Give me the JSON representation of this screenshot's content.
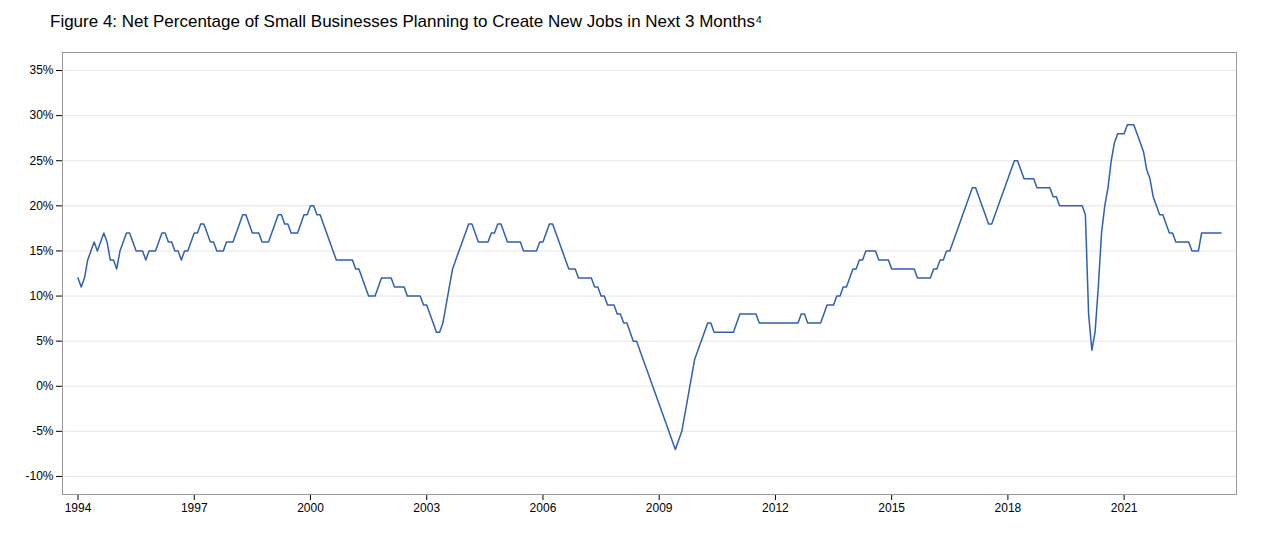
{
  "chart_data": {
    "type": "line",
    "title": "Figure 4: Net Percentage of Small Businesses Planning to Create New Jobs in Next 3 Months⁴",
    "color": "#3060b0",
    "grid": true,
    "xlim": [
      1993.6,
      2023.9
    ],
    "xticks": [
      1994,
      1997,
      2000,
      2003,
      2006,
      2009,
      2012,
      2015,
      2018,
      2021
    ],
    "ylim": [
      -12,
      37
    ],
    "yticks": [
      {
        "value": -10,
        "label": "-10%"
      },
      {
        "value": -5,
        "label": "-5%"
      },
      {
        "value": 0,
        "label": "0%"
      },
      {
        "value": 5,
        "label": "5%"
      },
      {
        "value": 10,
        "label": "10%"
      },
      {
        "value": 15,
        "label": "15%"
      },
      {
        "value": 20,
        "label": "20%"
      },
      {
        "value": 25,
        "label": "25%"
      },
      {
        "value": 30,
        "label": "30%"
      },
      {
        "value": 35,
        "label": "35%"
      }
    ],
    "x": [
      1994.0,
      1994.083,
      1994.167,
      1994.25,
      1994.333,
      1994.417,
      1994.5,
      1994.583,
      1994.667,
      1994.75,
      1994.833,
      1994.917,
      1995.0,
      1995.083,
      1995.167,
      1995.25,
      1995.333,
      1995.417,
      1995.5,
      1995.583,
      1995.667,
      1995.75,
      1995.833,
      1995.917,
      1996.0,
      1996.083,
      1996.167,
      1996.25,
      1996.333,
      1996.417,
      1996.5,
      1996.583,
      1996.667,
      1996.75,
      1996.833,
      1996.917,
      1997.0,
      1997.083,
      1997.167,
      1997.25,
      1997.333,
      1997.417,
      1997.5,
      1997.583,
      1997.667,
      1997.75,
      1997.833,
      1997.917,
      1998.0,
      1998.083,
      1998.167,
      1998.25,
      1998.333,
      1998.417,
      1998.5,
      1998.583,
      1998.667,
      1998.75,
      1998.833,
      1998.917,
      1999.0,
      1999.083,
      1999.167,
      1999.25,
      1999.333,
      1999.417,
      1999.5,
      1999.583,
      1999.667,
      1999.75,
      1999.833,
      1999.917,
      2000.0,
      2000.083,
      2000.167,
      2000.25,
      2000.333,
      2000.417,
      2000.5,
      2000.583,
      2000.667,
      2000.75,
      2000.833,
      2000.917,
      2001.0,
      2001.083,
      2001.167,
      2001.25,
      2001.333,
      2001.417,
      2001.5,
      2001.583,
      2001.667,
      2001.75,
      2001.833,
      2001.917,
      2002.0,
      2002.083,
      2002.167,
      2002.25,
      2002.333,
      2002.417,
      2002.5,
      2002.583,
      2002.667,
      2002.75,
      2002.833,
      2002.917,
      2003.0,
      2003.083,
      2003.167,
      2003.25,
      2003.333,
      2003.417,
      2003.5,
      2003.583,
      2003.667,
      2003.75,
      2003.833,
      2003.917,
      2004.0,
      2004.083,
      2004.167,
      2004.25,
      2004.333,
      2004.417,
      2004.5,
      2004.583,
      2004.667,
      2004.75,
      2004.833,
      2004.917,
      2005.0,
      2005.083,
      2005.167,
      2005.25,
      2005.333,
      2005.417,
      2005.5,
      2005.583,
      2005.667,
      2005.75,
      2005.833,
      2005.917,
      2006.0,
      2006.083,
      2006.167,
      2006.25,
      2006.333,
      2006.417,
      2006.5,
      2006.583,
      2006.667,
      2006.75,
      2006.833,
      2006.917,
      2007.0,
      2007.083,
      2007.167,
      2007.25,
      2007.333,
      2007.417,
      2007.5,
      2007.583,
      2007.667,
      2007.75,
      2007.833,
      2007.917,
      2008.0,
      2008.083,
      2008.167,
      2008.25,
      2008.333,
      2008.417,
      2008.5,
      2008.583,
      2008.667,
      2008.75,
      2008.833,
      2008.917,
      2009.0,
      2009.083,
      2009.167,
      2009.25,
      2009.333,
      2009.417,
      2009.5,
      2009.583,
      2009.667,
      2009.75,
      2009.833,
      2009.917,
      2010.0,
      2010.083,
      2010.167,
      2010.25,
      2010.333,
      2010.417,
      2010.5,
      2010.583,
      2010.667,
      2010.75,
      2010.833,
      2010.917,
      2011.0,
      2011.083,
      2011.167,
      2011.25,
      2011.333,
      2011.417,
      2011.5,
      2011.583,
      2011.667,
      2011.75,
      2011.833,
      2011.917,
      2012.0,
      2012.083,
      2012.167,
      2012.25,
      2012.333,
      2012.417,
      2012.5,
      2012.583,
      2012.667,
      2012.75,
      2012.833,
      2012.917,
      2013.0,
      2013.083,
      2013.167,
      2013.25,
      2013.333,
      2013.417,
      2013.5,
      2013.583,
      2013.667,
      2013.75,
      2013.833,
      2013.917,
      2014.0,
      2014.083,
      2014.167,
      2014.25,
      2014.333,
      2014.417,
      2014.5,
      2014.583,
      2014.667,
      2014.75,
      2014.833,
      2014.917,
      2015.0,
      2015.083,
      2015.167,
      2015.25,
      2015.333,
      2015.417,
      2015.5,
      2015.583,
      2015.667,
      2015.75,
      2015.833,
      2015.917,
      2016.0,
      2016.083,
      2016.167,
      2016.25,
      2016.333,
      2016.417,
      2016.5,
      2016.583,
      2016.667,
      2016.75,
      2016.833,
      2016.917,
      2017.0,
      2017.083,
      2017.167,
      2017.25,
      2017.333,
      2017.417,
      2017.5,
      2017.583,
      2017.667,
      2017.75,
      2017.833,
      2017.917,
      2018.0,
      2018.083,
      2018.167,
      2018.25,
      2018.333,
      2018.417,
      2018.5,
      2018.583,
      2018.667,
      2018.75,
      2018.833,
      2018.917,
      2019.0,
      2019.083,
      2019.167,
      2019.25,
      2019.333,
      2019.417,
      2019.5,
      2019.583,
      2019.667,
      2019.75,
      2019.833,
      2019.917,
      2020.0,
      2020.083,
      2020.167,
      2020.25,
      2020.333,
      2020.417,
      2020.5,
      2020.583,
      2020.667,
      2020.75,
      2020.833,
      2020.917,
      2021.0,
      2021.083,
      2021.167,
      2021.25,
      2021.333,
      2021.417,
      2021.5,
      2021.583,
      2021.667,
      2021.75,
      2021.833,
      2021.917,
      2022.0,
      2022.083,
      2022.167,
      2022.25,
      2022.333,
      2022.417,
      2022.5,
      2022.583,
      2022.667,
      2022.75,
      2022.833,
      2022.917,
      2023.0,
      2023.083,
      2023.167,
      2023.25,
      2023.333,
      2023.417,
      2023.5
    ],
    "values": [
      12,
      11,
      12,
      14,
      15,
      16,
      15,
      16,
      17,
      16,
      14,
      14,
      13,
      15,
      16,
      17,
      17,
      16,
      15,
      15,
      15,
      14,
      15,
      15,
      15,
      16,
      17,
      17,
      16,
      16,
      15,
      15,
      14,
      15,
      15,
      16,
      17,
      17,
      18,
      18,
      17,
      16,
      16,
      15,
      15,
      15,
      16,
      16,
      16,
      17,
      18,
      19,
      19,
      18,
      17,
      17,
      17,
      16,
      16,
      16,
      17,
      18,
      19,
      19,
      18,
      18,
      17,
      17,
      17,
      18,
      19,
      19,
      20,
      20,
      19,
      19,
      18,
      17,
      16,
      15,
      14,
      14,
      14,
      14,
      14,
      14,
      13,
      13,
      12,
      11,
      10,
      10,
      10,
      11,
      12,
      12,
      12,
      12,
      11,
      11,
      11,
      11,
      10,
      10,
      10,
      10,
      10,
      9,
      9,
      8,
      7,
      6,
      6,
      7,
      9,
      11,
      13,
      14,
      15,
      16,
      17,
      18,
      18,
      17,
      16,
      16,
      16,
      16,
      17,
      17,
      18,
      18,
      17,
      16,
      16,
      16,
      16,
      16,
      15,
      15,
      15,
      15,
      15,
      16,
      16,
      17,
      18,
      18,
      17,
      16,
      15,
      14,
      13,
      13,
      13,
      12,
      12,
      12,
      12,
      12,
      11,
      11,
      10,
      10,
      9,
      9,
      9,
      8,
      8,
      7,
      7,
      6,
      5,
      5,
      4,
      3,
      2,
      1,
      0,
      -1,
      -2,
      -3,
      -4,
      -5,
      -6,
      -7,
      -6,
      -5,
      -3,
      -1,
      1,
      3,
      4,
      5,
      6,
      7,
      7,
      6,
      6,
      6,
      6,
      6,
      6,
      6,
      7,
      8,
      8,
      8,
      8,
      8,
      8,
      7,
      7,
      7,
      7,
      7,
      7,
      7,
      7,
      7,
      7,
      7,
      7,
      7,
      8,
      8,
      7,
      7,
      7,
      7,
      7,
      8,
      9,
      9,
      9,
      10,
      10,
      11,
      11,
      12,
      13,
      13,
      14,
      14,
      15,
      15,
      15,
      15,
      14,
      14,
      14,
      14,
      13,
      13,
      13,
      13,
      13,
      13,
      13,
      13,
      12,
      12,
      12,
      12,
      12,
      13,
      13,
      14,
      14,
      15,
      15,
      16,
      17,
      18,
      19,
      20,
      21,
      22,
      22,
      21,
      20,
      19,
      18,
      18,
      19,
      20,
      21,
      22,
      23,
      24,
      25,
      25,
      24,
      23,
      23,
      23,
      23,
      22,
      22,
      22,
      22,
      22,
      21,
      21,
      20,
      20,
      20,
      20,
      20,
      20,
      20,
      20,
      19,
      8,
      4,
      6,
      11,
      17,
      20,
      22,
      25,
      27,
      28,
      28,
      28,
      29,
      29,
      29,
      28,
      27,
      26,
      24,
      23,
      21,
      20,
      19,
      19,
      18,
      17,
      17,
      16,
      16,
      16,
      16,
      16,
      15,
      15,
      15,
      17,
      17,
      17,
      17,
      17,
      17,
      17
    ]
  }
}
